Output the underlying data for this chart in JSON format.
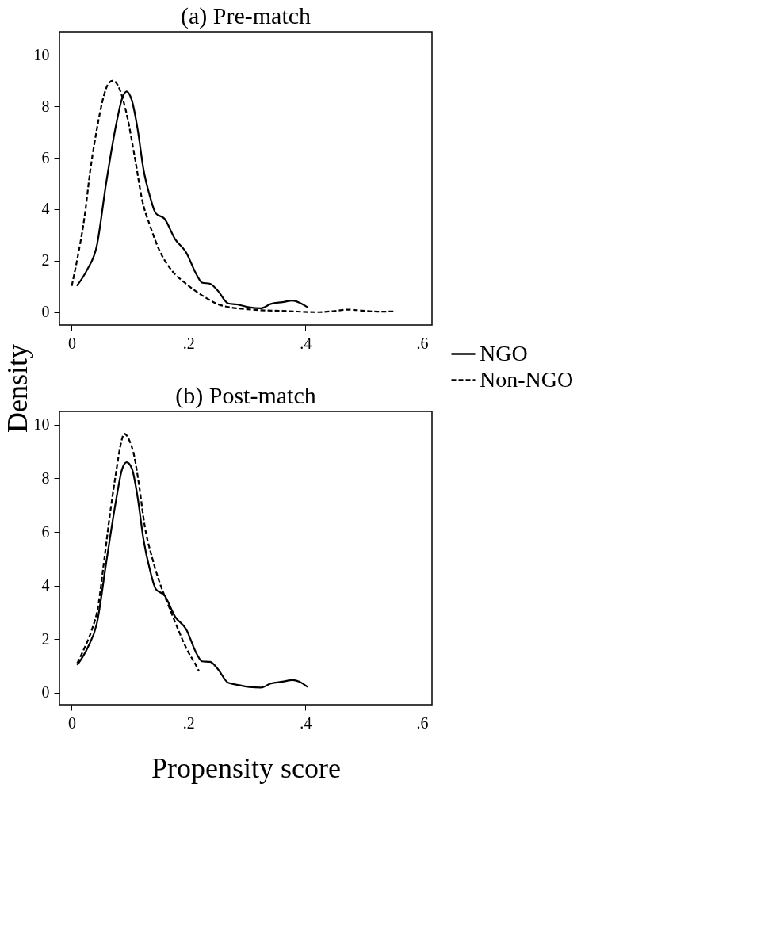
{
  "chart_data": [
    {
      "type": "line",
      "title": "(a) Pre-match",
      "ylabel": "Density",
      "xlim": [
        -0.021,
        0.617
      ],
      "ylim": [
        -0.5,
        10.9
      ],
      "xticks": [
        0,
        {
          "value": 0.2,
          "label": ".2"
        },
        {
          "value": 0.4,
          "label": ".4"
        },
        {
          "value": 0.6,
          "label": ".6"
        }
      ],
      "yticks": [
        0,
        2,
        4,
        6,
        8,
        10
      ],
      "grid": false,
      "legend": "right",
      "series": [
        {
          "name": "NGO",
          "color": "#000000",
          "line_style": "solid",
          "x": [
            0.0087,
            0.026,
            0.043,
            0.059,
            0.076,
            0.086,
            0.094,
            0.103,
            0.113,
            0.123,
            0.134,
            0.144,
            0.159,
            0.177,
            0.196,
            0.214,
            0.223,
            0.237,
            0.25,
            0.268,
            0.283,
            0.304,
            0.324,
            0.341,
            0.361,
            0.378,
            0.39,
            0.404
          ],
          "values": [
            1.02,
            1.63,
            2.58,
            5.02,
            7.28,
            8.28,
            8.58,
            8.23,
            7.1,
            5.54,
            4.5,
            3.84,
            3.63,
            2.84,
            2.32,
            1.45,
            1.15,
            1.1,
            0.84,
            0.34,
            0.3,
            0.19,
            0.15,
            0.32,
            0.39,
            0.45,
            0.37,
            0.19
          ]
        },
        {
          "name": "Non-NGO",
          "color": "#000000",
          "line_style": "dashed",
          "x": [
            0.0,
            0.0095,
            0.022,
            0.032,
            0.043,
            0.055,
            0.063,
            0.071,
            0.082,
            0.094,
            0.109,
            0.121,
            0.134,
            0.15,
            0.171,
            0.196,
            0.225,
            0.258,
            0.308,
            0.37,
            0.419,
            0.448,
            0.473,
            0.498,
            0.527,
            0.552
          ],
          "values": [
            1.02,
            2.06,
            3.71,
            5.54,
            7.1,
            8.41,
            8.89,
            9.0,
            8.67,
            7.71,
            5.89,
            4.32,
            3.37,
            2.41,
            1.63,
            1.1,
            0.63,
            0.25,
            0.1,
            0.04,
            0.0,
            0.04,
            0.1,
            0.06,
            0.02,
            0.03
          ]
        }
      ]
    },
    {
      "type": "line",
      "title": "(b) Post-match",
      "xlabel": "Propensity score",
      "xlim": [
        -0.021,
        0.617
      ],
      "ylim": [
        -0.45,
        10.5
      ],
      "xticks": [
        0,
        {
          "value": 0.2,
          "label": ".2"
        },
        {
          "value": 0.4,
          "label": ".4"
        },
        {
          "value": 0.6,
          "label": ".6"
        }
      ],
      "yticks": [
        0,
        2,
        4,
        6,
        8,
        10
      ],
      "grid": false,
      "legend": "right",
      "series": [
        {
          "name": "NGO",
          "color": "#000000",
          "line_style": "solid",
          "x": [
            0.0095,
            0.028,
            0.043,
            0.059,
            0.076,
            0.086,
            0.094,
            0.103,
            0.113,
            0.123,
            0.134,
            0.144,
            0.159,
            0.177,
            0.196,
            0.214,
            0.223,
            0.237,
            0.25,
            0.268,
            0.287,
            0.304,
            0.324,
            0.341,
            0.361,
            0.378,
            0.39,
            0.404
          ],
          "values": [
            1.03,
            1.71,
            2.58,
            4.84,
            7.19,
            8.32,
            8.6,
            8.37,
            7.28,
            5.71,
            4.58,
            3.87,
            3.63,
            2.84,
            2.37,
            1.45,
            1.17,
            1.15,
            0.89,
            0.37,
            0.28,
            0.21,
            0.19,
            0.34,
            0.41,
            0.47,
            0.41,
            0.21
          ]
        },
        {
          "name": "Non-NGO",
          "color": "#000000",
          "line_style": "dashed",
          "x": [
            0.0095,
            0.02,
            0.034,
            0.045,
            0.055,
            0.065,
            0.076,
            0.084,
            0.09,
            0.098,
            0.107,
            0.115,
            0.125,
            0.138,
            0.15,
            0.167,
            0.183,
            0.2,
            0.212,
            0.218
          ],
          "values": [
            1.1,
            1.58,
            2.32,
            3.19,
            4.84,
            6.58,
            8.23,
            9.28,
            9.67,
            9.45,
            8.84,
            7.8,
            6.23,
            5.02,
            4.15,
            3.19,
            2.32,
            1.5,
            1.06,
            0.8
          ]
        }
      ]
    }
  ]
}
